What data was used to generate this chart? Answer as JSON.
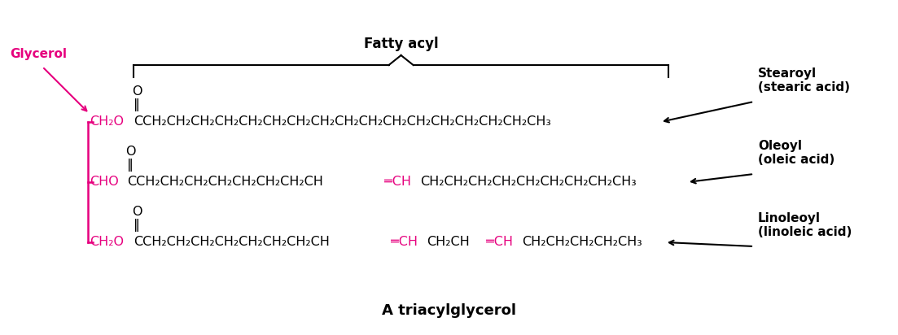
{
  "bg_color": "#ffffff",
  "magenta": "#e6007e",
  "black": "#000000",
  "title": "A triacylglycerol",
  "fatty_acyl_label": "Fatty acyl",
  "glycerol_label": "Glycerol",
  "label1": "Stearoyl\n(stearic acid)",
  "label2": "Oleoyl\n(oleic acid)",
  "label3": "Linoleoyl\n(linoleic acid)",
  "font_size_formula": 11.5,
  "font_size_label": 11,
  "font_size_title": 13,
  "dpi": 100,
  "fig_w": 11.03,
  "fig_h": 4.12
}
